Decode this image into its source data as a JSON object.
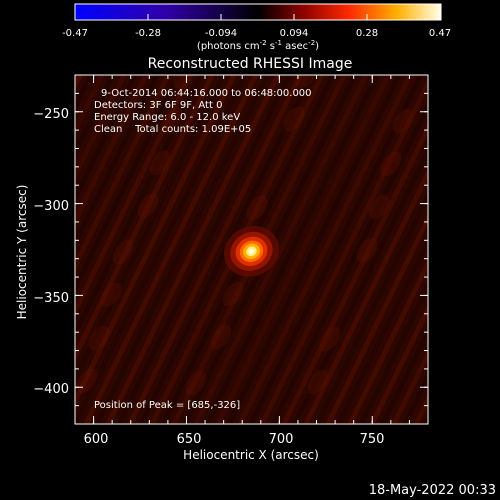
{
  "colorbar": {
    "ticks": [
      "-0.47",
      "-0.28",
      "-0.094",
      "0.094",
      "0.28",
      "0.47"
    ],
    "unit_prefix": "(photons cm",
    "unit_exp1": "-2",
    "unit_mid": " s",
    "unit_exp2": "-1",
    "unit_mid2": " asec",
    "unit_exp3": "-2",
    "unit_suffix": ")"
  },
  "chart_data": {
    "type": "heatmap",
    "title": "Reconstructed RHESSI Image",
    "xlabel": "Heliocentric X (arcsec)",
    "ylabel": "Heliocentric Y (arcsec)",
    "x_ticks": [
      "600",
      "650",
      "700",
      "750"
    ],
    "y_ticks": [
      "−250",
      "−300",
      "−350",
      "−400"
    ],
    "xlim": [
      590,
      780
    ],
    "ylim": [
      -420,
      -230
    ],
    "value_range": [
      -0.47,
      0.47
    ],
    "peak": {
      "x": 685,
      "y": -326
    },
    "annotations": {
      "time": "9-Oct-2014 06:44:16.000 to 06:48:00.000",
      "detectors": "Detectors: 3F 6F 9F, Att 0",
      "energy": "Energy Range: 6.0 - 12.0 keV",
      "clean": "Clean    Total counts: 1.09E+05",
      "peak_label": "Position of Peak = [685,-326]"
    }
  },
  "footer": {
    "date": "18-May-2022 00:33"
  }
}
